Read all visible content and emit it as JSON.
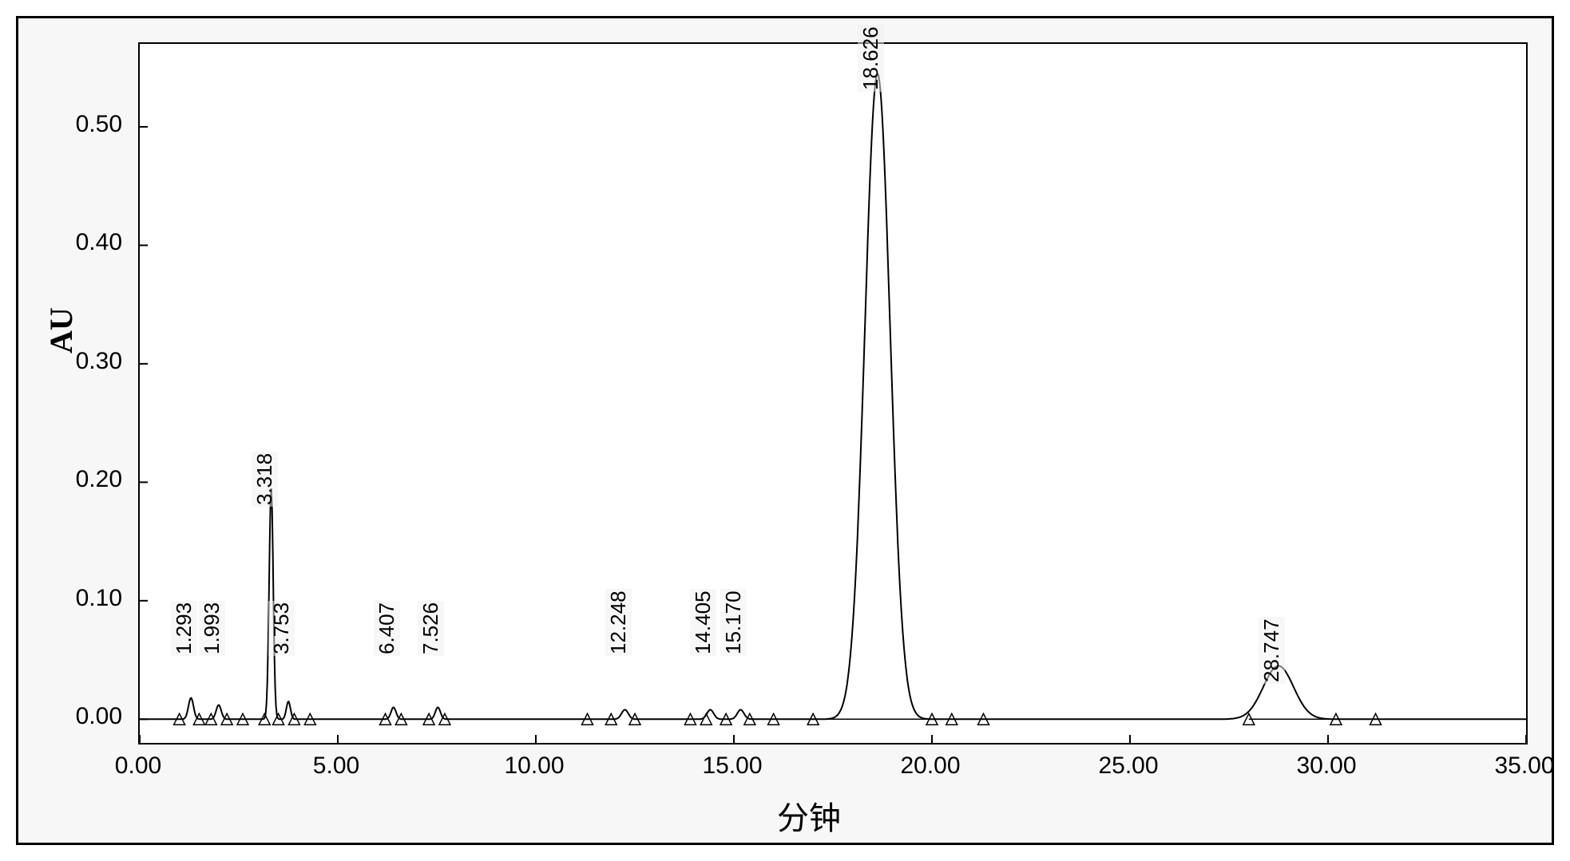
{
  "chart": {
    "type": "chromatogram",
    "ylabel": "AU",
    "xlabel": "分钟",
    "label_fontsize": 40,
    "tick_fontsize": 30,
    "peak_label_fontsize": 26,
    "background_color": "#ffffff",
    "frame_color": "#000000",
    "trace_color": "#000000",
    "marker_color": "#000000",
    "baseline_color": "#000000",
    "xlim": [
      0,
      35
    ],
    "ylim": [
      -0.02,
      0.57
    ],
    "xtick_step": 5.0,
    "ytick_step": 0.1,
    "xticks": [
      0.0,
      5.0,
      10.0,
      15.0,
      20.0,
      25.0,
      30.0,
      35.0
    ],
    "yticks": [
      0.0,
      0.1,
      0.2,
      0.3,
      0.4,
      0.5
    ],
    "peaks": [
      {
        "rt": 1.293,
        "height": 0.018,
        "width": 0.15
      },
      {
        "rt": 1.993,
        "height": 0.012,
        "width": 0.15
      },
      {
        "rt": 3.318,
        "height": 0.195,
        "width": 0.12
      },
      {
        "rt": 3.753,
        "height": 0.015,
        "width": 0.12
      },
      {
        "rt": 6.407,
        "height": 0.01,
        "width": 0.15
      },
      {
        "rt": 7.526,
        "height": 0.01,
        "width": 0.15
      },
      {
        "rt": 12.248,
        "height": 0.008,
        "width": 0.2
      },
      {
        "rt": 14.405,
        "height": 0.008,
        "width": 0.2
      },
      {
        "rt": 15.17,
        "height": 0.008,
        "width": 0.2
      },
      {
        "rt": 18.626,
        "height": 0.545,
        "width": 0.75
      },
      {
        "rt": 28.747,
        "height": 0.045,
        "width": 0.9
      }
    ],
    "markers_x": [
      1.0,
      1.5,
      1.8,
      2.2,
      2.6,
      3.15,
      3.5,
      3.9,
      4.3,
      6.2,
      6.6,
      7.3,
      7.7,
      11.3,
      11.9,
      12.5,
      13.9,
      14.3,
      14.8,
      15.4,
      16.0,
      17.0,
      20.0,
      20.5,
      21.3,
      28.0,
      30.2,
      31.2
    ]
  }
}
